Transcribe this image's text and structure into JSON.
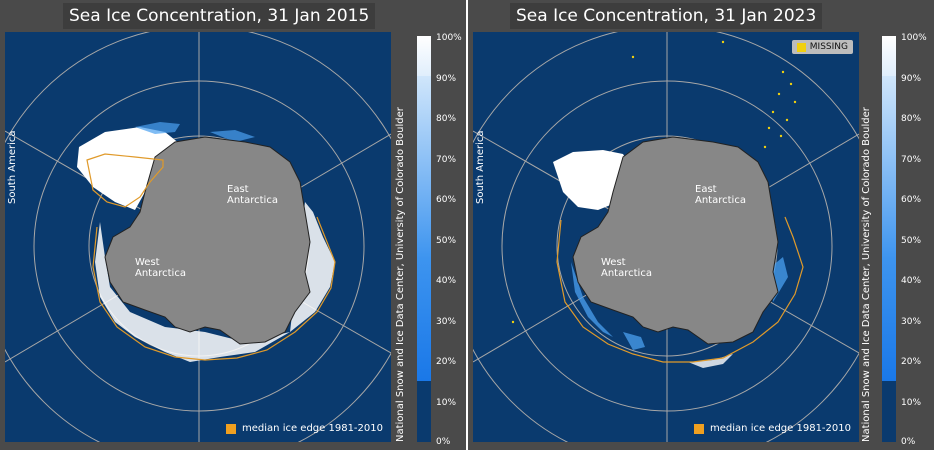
{
  "panels": [
    {
      "title": "Sea Ice Concentration, 31 Jan 2015",
      "labels": {
        "east": "East\nAntarctica",
        "west": "West\nAntarctica",
        "south_america": "South America"
      },
      "legend_label": "median ice edge 1981-2010",
      "missing_label": ""
    },
    {
      "title": "Sea Ice Concentration, 31 Jan 2023",
      "labels": {
        "east": "East\nAntarctica",
        "west": "West\nAntarctica",
        "south_america": "South America"
      },
      "legend_label": "median ice edge 1981-2010",
      "missing_label": "MISSING"
    }
  ],
  "colorbar": {
    "credit": "National Snow and Ice Data Center, University of Colorado Boulder",
    "ticks": [
      "100%",
      "90%",
      "80%",
      "70%",
      "60%",
      "50%",
      "40%",
      "30%",
      "20%",
      "10%",
      "0%"
    ]
  },
  "colors": {
    "ocean": "#0a3a6e",
    "land": "#878787",
    "grid": "#a7a7a7",
    "median_edge": "#e09a2a",
    "missing": "#f0d010",
    "ice_high": "#ffffff",
    "ice_low": "#2a7de0"
  }
}
